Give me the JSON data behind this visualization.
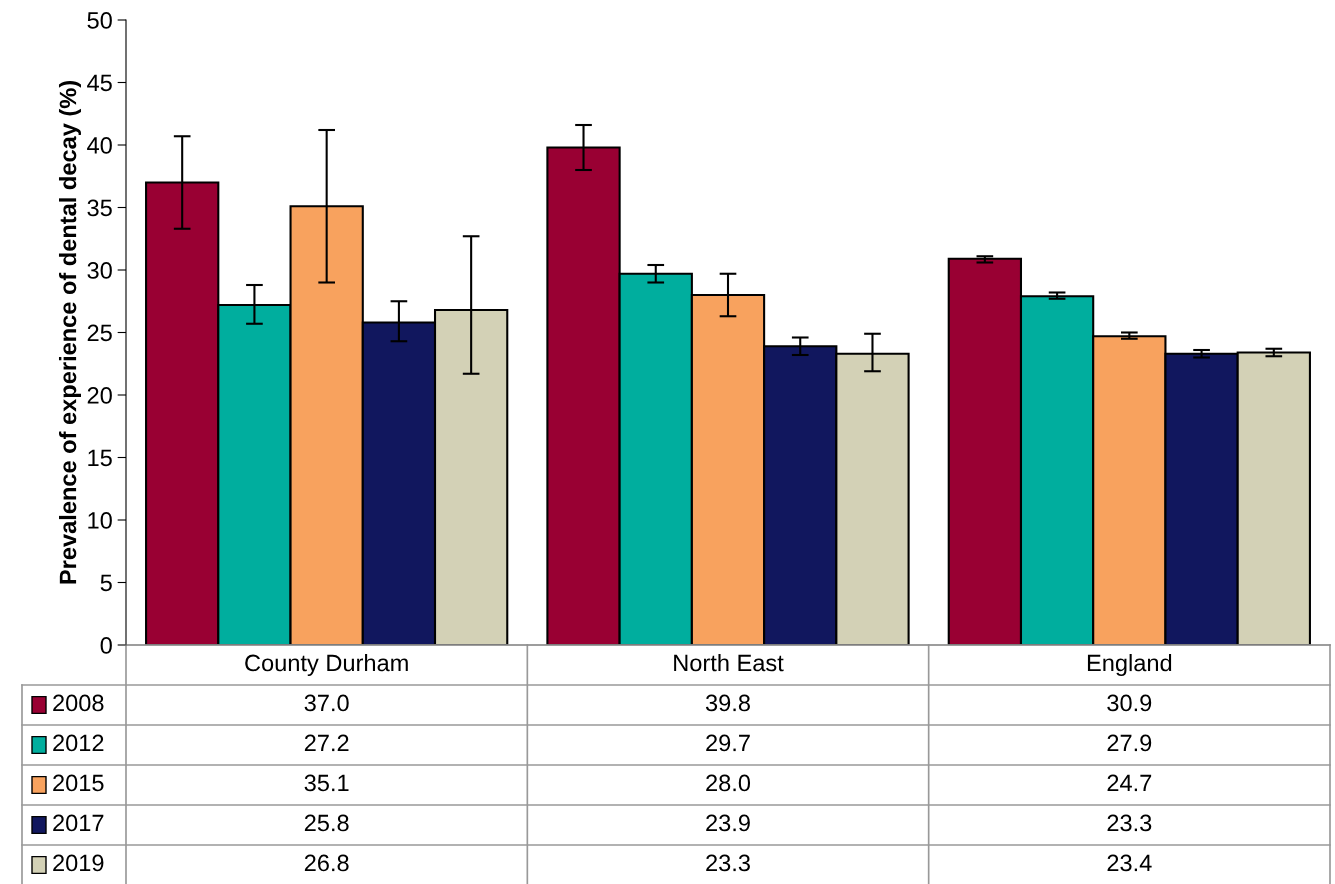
{
  "chart_data": {
    "type": "bar",
    "ylabel": "Prevalence of experience of dental decay (%)",
    "categories": [
      "County Durham",
      "North East",
      "England"
    ],
    "ylim": [
      0,
      50
    ],
    "yticks": [
      0,
      5,
      10,
      15,
      20,
      25,
      30,
      35,
      40,
      45,
      50
    ],
    "grid": false,
    "legend": "bottom",
    "series": [
      {
        "name": "2008",
        "color": "#990033",
        "values": [
          37.0,
          39.8,
          30.9
        ],
        "value_labels": [
          "37.0",
          "39.8",
          "30.9"
        ],
        "errors": [
          [
            33.3,
            40.7
          ],
          [
            38.0,
            41.6
          ],
          [
            30.6,
            31.1
          ]
        ]
      },
      {
        "name": "2012",
        "color": "#00ae9e",
        "values": [
          27.2,
          29.7,
          27.9
        ],
        "value_labels": [
          "27.2",
          "29.7",
          "27.9"
        ],
        "errors": [
          [
            25.7,
            28.8
          ],
          [
            29.0,
            30.4
          ],
          [
            27.7,
            28.2
          ]
        ]
      },
      {
        "name": "2015",
        "color": "#f8a25e",
        "values": [
          35.1,
          28.0,
          24.7
        ],
        "value_labels": [
          "35.1",
          "28.0",
          "24.7"
        ],
        "errors": [
          [
            29.0,
            41.2
          ],
          [
            26.3,
            29.7
          ],
          [
            24.5,
            25.0
          ]
        ]
      },
      {
        "name": "2017",
        "color": "#11175e",
        "values": [
          25.8,
          23.9,
          23.3
        ],
        "value_labels": [
          "25.8",
          "23.9",
          "23.3"
        ],
        "errors": [
          [
            24.3,
            27.5
          ],
          [
            23.2,
            24.6
          ],
          [
            23.0,
            23.6
          ]
        ]
      },
      {
        "name": "2019",
        "color": "#d3d1b6",
        "values": [
          26.8,
          23.3,
          23.4
        ],
        "value_labels": [
          "26.8",
          "23.3",
          "23.4"
        ],
        "errors": [
          [
            21.7,
            32.7
          ],
          [
            21.9,
            24.9
          ],
          [
            23.1,
            23.7
          ]
        ]
      }
    ]
  }
}
